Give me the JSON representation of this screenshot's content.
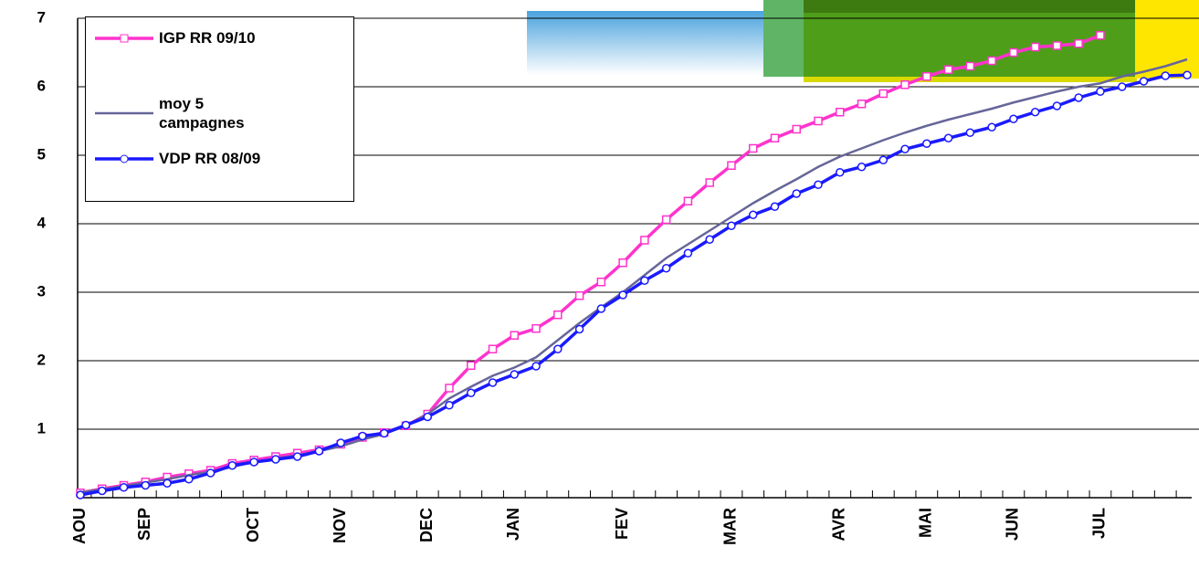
{
  "chart_data": {
    "type": "line",
    "categories": [
      "AOU",
      null,
      null,
      "SEP",
      null,
      null,
      null,
      null,
      "OCT",
      null,
      null,
      null,
      "NOV",
      null,
      null,
      null,
      "DEC",
      null,
      null,
      null,
      "JAN",
      null,
      null,
      null,
      null,
      "FEV",
      null,
      null,
      null,
      null,
      "MAR",
      null,
      null,
      null,
      null,
      "AVR",
      null,
      null,
      null,
      "MAI",
      null,
      null,
      null,
      "JUN",
      null,
      null,
      null,
      "JUL",
      null,
      null,
      null,
      null
    ],
    "series": [
      {
        "name": "IGP RR 09/10",
        "color": "#ff33cc",
        "marker": "square",
        "values": [
          0.07,
          0.13,
          0.18,
          0.23,
          0.3,
          0.35,
          0.4,
          0.5,
          0.55,
          0.6,
          0.65,
          0.7,
          0.78,
          0.88,
          0.95,
          1.05,
          1.22,
          1.6,
          1.93,
          2.17,
          2.37,
          2.47,
          2.67,
          2.95,
          3.15,
          3.43,
          3.76,
          4.06,
          4.33,
          4.6,
          4.85,
          5.1,
          5.25,
          5.38,
          5.5,
          5.63,
          5.75,
          5.9,
          6.03,
          6.15,
          6.25,
          6.3,
          6.38,
          6.5,
          6.58,
          6.6,
          6.63,
          6.75,
          null,
          null,
          null,
          null
        ]
      },
      {
        "name": "moy 5 campagnes",
        "color": "#666699",
        "marker": "none",
        "values": [
          0.08,
          0.12,
          0.17,
          0.22,
          0.27,
          0.33,
          0.38,
          0.45,
          0.52,
          0.57,
          0.62,
          0.68,
          0.75,
          0.85,
          0.93,
          1.05,
          1.22,
          1.45,
          1.62,
          1.78,
          1.9,
          2.05,
          2.3,
          2.55,
          2.78,
          3.0,
          3.25,
          3.5,
          3.7,
          3.9,
          4.1,
          4.3,
          4.48,
          4.65,
          4.83,
          4.98,
          5.1,
          5.22,
          5.33,
          5.43,
          5.52,
          5.6,
          5.68,
          5.77,
          5.85,
          5.93,
          6.0,
          6.05,
          6.15,
          6.22,
          6.3,
          6.4
        ]
      },
      {
        "name": "VDP RR 08/09",
        "color": "#1a1aff",
        "marker": "circle",
        "values": [
          0.04,
          0.1,
          0.15,
          0.18,
          0.21,
          0.27,
          0.36,
          0.47,
          0.52,
          0.56,
          0.6,
          0.68,
          0.8,
          0.9,
          0.94,
          1.06,
          1.18,
          1.35,
          1.53,
          1.68,
          1.8,
          1.92,
          2.17,
          2.46,
          2.76,
          2.96,
          3.17,
          3.35,
          3.57,
          3.77,
          3.97,
          4.13,
          4.25,
          4.44,
          4.57,
          4.75,
          4.83,
          4.93,
          5.09,
          5.17,
          5.25,
          5.33,
          5.41,
          5.53,
          5.63,
          5.72,
          5.84,
          5.93,
          6.0,
          6.08,
          6.16,
          6.17
        ]
      }
    ],
    "ylim": [
      0,
      7
    ],
    "yticks": [
      1,
      2,
      3,
      4,
      5,
      6,
      7
    ],
    "grid": true,
    "legend": "upper left"
  }
}
